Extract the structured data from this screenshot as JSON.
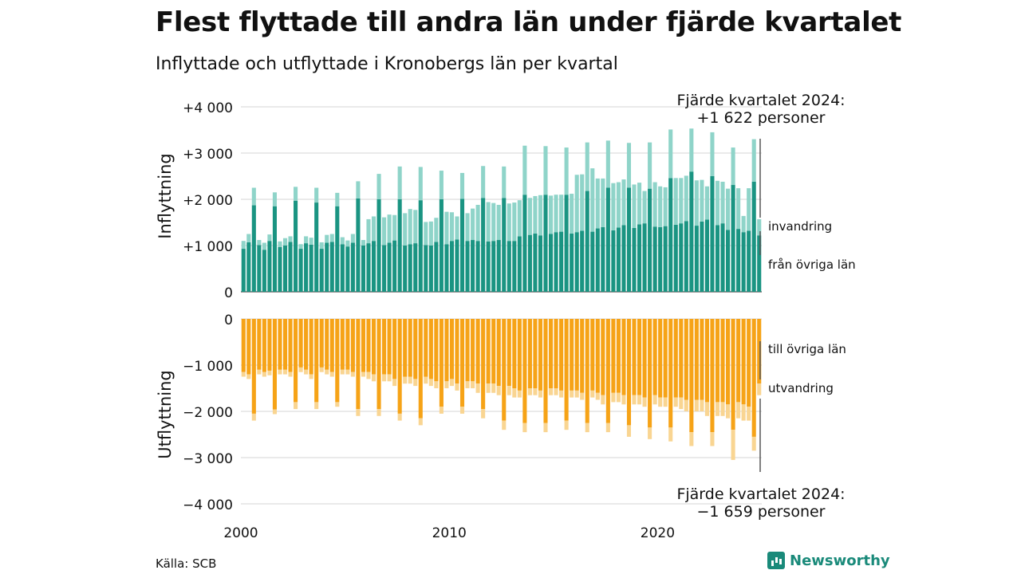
{
  "title": "Flest flyttade till andra län under fjärde kvartalet",
  "subtitle": "Inflyttade och utflyttade i Kronobergs län per kvartal",
  "source": "Källa: SCB",
  "brand": "Newsworthy",
  "colors": {
    "inflytt_dark": "#1a9482",
    "inflytt_light": "#8fd4c9",
    "utflytt_dark": "#f6a317",
    "utflytt_light": "#f9d592",
    "grid": "#dddddd",
    "marker": "#555555"
  },
  "chart_data": {
    "type": "bar",
    "x_start": "2000 Q1",
    "x_ticks": [
      "2000",
      "2010",
      "2020"
    ],
    "top_panel": {
      "ylabel": "Inflyttning",
      "ylim": [
        0,
        4000
      ],
      "yticks": [
        0,
        1000,
        2000,
        3000,
        4000
      ],
      "ytick_labels": [
        "0",
        "+1 000",
        "+2 000",
        "+3 000",
        "+4 000"
      ],
      "series": [
        {
          "name": "från övriga län",
          "values": [
            930,
            1070,
            1870,
            1010,
            910,
            1100,
            1850,
            970,
            1000,
            1080,
            1970,
            930,
            1050,
            1020,
            1930,
            930,
            1060,
            1080,
            1850,
            1030,
            980,
            1060,
            2020,
            1000,
            1050,
            1100,
            2000,
            1010,
            1060,
            1110,
            2000,
            1000,
            1030,
            1050,
            1980,
            1010,
            1000,
            1080,
            2000,
            1030,
            1100,
            1130,
            2010,
            1100,
            1120,
            1100,
            2030,
            1090,
            1100,
            1120,
            2030,
            1100,
            1100,
            1200,
            2100,
            1230,
            1260,
            1220,
            2100,
            1250,
            1290,
            1300,
            2100,
            1260,
            1290,
            1320,
            2180,
            1300,
            1370,
            1400,
            2250,
            1330,
            1390,
            1440,
            2250,
            1380,
            1460,
            1480,
            2230,
            1410,
            1400,
            1420,
            2460,
            1450,
            1480,
            1530,
            2600,
            1430,
            1520,
            1560,
            2500,
            1440,
            1480,
            1340,
            2310,
            1360,
            1290,
            1320,
            2380,
            1220
          ]
        },
        {
          "name": "invandring",
          "values": [
            170,
            180,
            380,
            110,
            150,
            140,
            300,
            120,
            160,
            120,
            300,
            100,
            150,
            150,
            320,
            140,
            170,
            170,
            290,
            150,
            130,
            190,
            370,
            120,
            520,
            530,
            550,
            600,
            610,
            550,
            710,
            700,
            760,
            720,
            720,
            500,
            520,
            520,
            620,
            700,
            620,
            500,
            560,
            600,
            680,
            780,
            690,
            850,
            820,
            760,
            680,
            810,
            830,
            780,
            1060,
            800,
            810,
            870,
            1050,
            830,
            810,
            800,
            1020,
            860,
            1240,
            1220,
            1050,
            1370,
            1080,
            1050,
            1020,
            1020,
            980,
            990,
            970,
            940,
            900,
            700,
            1000,
            960,
            880,
            840,
            1050,
            1010,
            980,
            980,
            930,
            980,
            900,
            720,
            950,
            960,
            900,
            890,
            810,
            880,
            350,
            920,
            920,
            350
          ]
        }
      ]
    },
    "bottom_panel": {
      "ylabel": "Utflyttning",
      "ylim": [
        -4000,
        0
      ],
      "yticks": [
        0,
        -1000,
        -2000,
        -3000,
        -4000
      ],
      "ytick_labels": [
        "0",
        "−1 000",
        "−2 000",
        "−3 000",
        "−4 000"
      ],
      "series": [
        {
          "name": "till övriga län",
          "values": [
            -1150,
            -1200,
            -2050,
            -1100,
            -1150,
            -1120,
            -1960,
            -1100,
            -1100,
            -1150,
            -1800,
            -1050,
            -1100,
            -1200,
            -1800,
            -1050,
            -1100,
            -1150,
            -1800,
            -1100,
            -1100,
            -1150,
            -1950,
            -1150,
            -1150,
            -1200,
            -1950,
            -1200,
            -1200,
            -1300,
            -2050,
            -1250,
            -1250,
            -1300,
            -2150,
            -1250,
            -1300,
            -1350,
            -1900,
            -1350,
            -1300,
            -1400,
            -1900,
            -1350,
            -1350,
            -1400,
            -1950,
            -1400,
            -1400,
            -1450,
            -2200,
            -1450,
            -1500,
            -1550,
            -2250,
            -1500,
            -1500,
            -1550,
            -2250,
            -1500,
            -1500,
            -1550,
            -2200,
            -1550,
            -1550,
            -1600,
            -2250,
            -1550,
            -1600,
            -1650,
            -2250,
            -1600,
            -1600,
            -1650,
            -2300,
            -1650,
            -1650,
            -1700,
            -2350,
            -1650,
            -1700,
            -1700,
            -2350,
            -1700,
            -1700,
            -1750,
            -2450,
            -1750,
            -1750,
            -1800,
            -2450,
            -1800,
            -1800,
            -1850,
            -2400,
            -1800,
            -1850,
            -1900,
            -2550,
            -1400
          ]
        },
        {
          "name": "utvandring",
          "values": [
            -100,
            -100,
            -150,
            -100,
            -100,
            -100,
            -100,
            -100,
            -100,
            -100,
            -150,
            -100,
            -100,
            -100,
            -150,
            -100,
            -100,
            -100,
            -100,
            -100,
            -100,
            -100,
            -150,
            -100,
            -150,
            -150,
            -150,
            -150,
            -150,
            -150,
            -150,
            -150,
            -150,
            -150,
            -150,
            -150,
            -150,
            -150,
            -150,
            -150,
            -150,
            -150,
            -150,
            -150,
            -150,
            -200,
            -200,
            -200,
            -200,
            -200,
            -200,
            -200,
            -200,
            -150,
            -200,
            -150,
            -150,
            -150,
            -200,
            -150,
            -150,
            -150,
            -200,
            -150,
            -150,
            -150,
            -200,
            -150,
            -150,
            -200,
            -200,
            -200,
            -200,
            -200,
            -250,
            -200,
            -200,
            -200,
            -250,
            -200,
            -200,
            -200,
            -300,
            -200,
            -250,
            -250,
            -300,
            -250,
            -250,
            -300,
            -300,
            -300,
            -300,
            -300,
            -650,
            -350,
            -350,
            -300,
            -300,
            -250
          ]
        }
      ]
    },
    "annotation_top": [
      "Fjärde kvartalet 2024:",
      "+1 622 personer"
    ],
    "annotation_bottom": [
      "Fjärde kvartalet 2024:",
      "−1 659 personer"
    ],
    "label_invandring": "invandring",
    "label_fran_ovriga_lan": "från övriga län",
    "label_till_ovriga_lan": "till övriga län",
    "label_utvandring": "utvandring"
  }
}
